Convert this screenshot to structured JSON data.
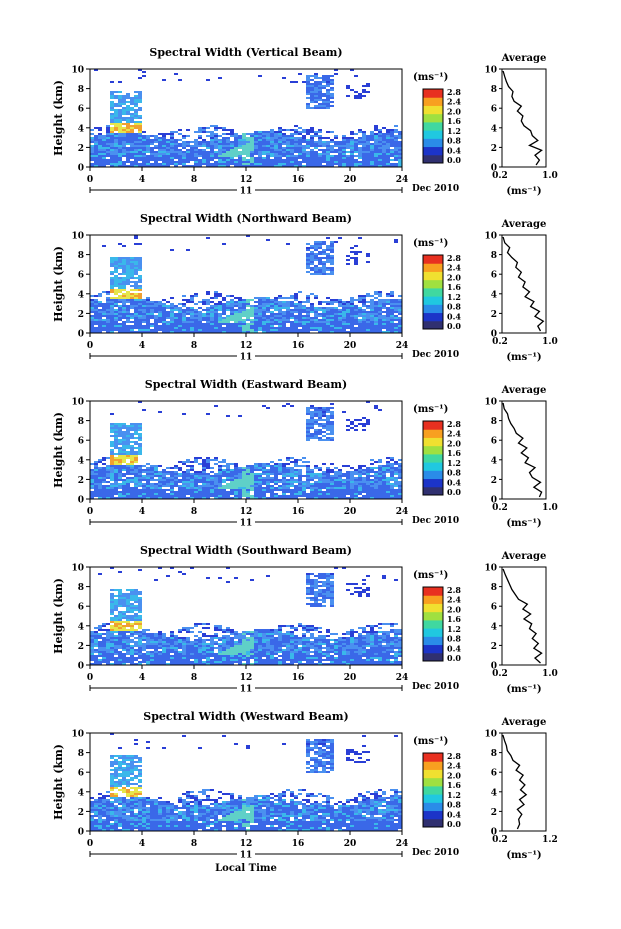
{
  "figure": {
    "date_label": "Dec 2010",
    "day_label": "11",
    "x_label": "Local Time",
    "y_label": "Height (km)",
    "unit_label": "(ms⁻¹)",
    "avg_title": "Average",
    "avg_xlabel": "(ms⁻¹)",
    "colorbar_ticks": [
      "0.0",
      "0.4",
      "0.8",
      "1.2",
      "1.6",
      "2.0",
      "2.4",
      "2.8"
    ],
    "colorbar_colors": [
      "#303070",
      "#1c34c8",
      "#2a8ce8",
      "#20c8e0",
      "#40d8a0",
      "#a0e040",
      "#f0e030",
      "#f8a020",
      "#e83020"
    ],
    "heatmap_colors": [
      "#2a3fd6",
      "#3a68e8",
      "#4a90f0",
      "#3ab8ea",
      "#5fd0c8",
      "#e6e64a",
      "#f0a030"
    ]
  },
  "chart_data": [
    {
      "type": "heatmap",
      "title": "Spectral Width (Vertical Beam)",
      "xlabel": "",
      "ylabel": "Height (km)",
      "xlim": [
        0,
        24
      ],
      "ylim": [
        0,
        10
      ],
      "x_ticks": [
        0,
        4,
        8,
        12,
        16,
        20,
        24
      ],
      "y_ticks": [
        0,
        2,
        4,
        6,
        8,
        10
      ],
      "colorbar_range": [
        0.0,
        2.8
      ],
      "average_profile": {
        "xlim": [
          0.2,
          1.0
        ],
        "x_tick_labels": [
          "0.2",
          "1.0"
        ],
        "x": [
          0.82,
          0.88,
          0.8,
          0.92,
          0.7,
          0.85,
          0.75,
          0.72,
          0.6,
          0.55,
          0.58,
          0.48,
          0.55,
          0.42,
          0.38,
          0.4,
          0.32,
          0.28,
          0.25,
          0.22
        ],
        "y": [
          0.2,
          0.7,
          1.2,
          1.7,
          2.2,
          2.7,
          3.2,
          3.7,
          4.2,
          4.7,
          5.2,
          5.7,
          6.2,
          6.7,
          7.2,
          7.7,
          8.2,
          8.7,
          9.2,
          9.8
        ]
      }
    },
    {
      "type": "heatmap",
      "title": "Spectral Width (Northward Beam)",
      "xlabel": "",
      "ylabel": "Height (km)",
      "xlim": [
        0,
        24
      ],
      "ylim": [
        0,
        10
      ],
      "x_ticks": [
        0,
        4,
        8,
        12,
        16,
        20,
        24
      ],
      "y_ticks": [
        0,
        2,
        4,
        6,
        8,
        10
      ],
      "colorbar_range": [
        0.0,
        2.8
      ],
      "average_profile": {
        "xlim": [
          0.2,
          1.0
        ],
        "x_tick_labels": [
          "0.2",
          "1.0"
        ],
        "x": [
          0.9,
          0.85,
          0.95,
          0.8,
          0.88,
          0.72,
          0.78,
          0.62,
          0.7,
          0.58,
          0.62,
          0.5,
          0.55,
          0.45,
          0.48,
          0.38,
          0.3,
          0.34,
          0.25,
          0.22
        ],
        "y": [
          0.2,
          0.7,
          1.2,
          1.7,
          2.2,
          2.7,
          3.2,
          3.7,
          4.2,
          4.7,
          5.2,
          5.7,
          6.2,
          6.7,
          7.2,
          7.7,
          8.2,
          8.7,
          9.2,
          9.8
        ]
      }
    },
    {
      "type": "heatmap",
      "title": "Spectral Width (Eastward Beam)",
      "xlabel": "",
      "ylabel": "Height (km)",
      "xlim": [
        0,
        24
      ],
      "ylim": [
        0,
        10
      ],
      "x_ticks": [
        0,
        4,
        8,
        12,
        16,
        20,
        24
      ],
      "y_ticks": [
        0,
        2,
        4,
        6,
        8,
        10
      ],
      "colorbar_range": [
        0.0,
        2.8
      ],
      "average_profile": {
        "xlim": [
          0.2,
          1.0
        ],
        "x_tick_labels": [
          "0.2",
          "1.0"
        ],
        "x": [
          0.88,
          0.92,
          0.78,
          0.9,
          0.75,
          0.7,
          0.8,
          0.62,
          0.68,
          0.55,
          0.65,
          0.5,
          0.58,
          0.46,
          0.42,
          0.36,
          0.32,
          0.3,
          0.24,
          0.22
        ],
        "y": [
          0.2,
          0.7,
          1.2,
          1.7,
          2.2,
          2.7,
          3.2,
          3.7,
          4.2,
          4.7,
          5.2,
          5.7,
          6.2,
          6.7,
          7.2,
          7.7,
          8.2,
          8.7,
          9.2,
          9.8
        ]
      }
    },
    {
      "type": "heatmap",
      "title": "Spectral Width (Southward Beam)",
      "xlabel": "",
      "ylabel": "Height (km)",
      "xlim": [
        0,
        24
      ],
      "ylim": [
        0,
        10
      ],
      "x_ticks": [
        0,
        4,
        8,
        12,
        16,
        20,
        24
      ],
      "y_ticks": [
        0,
        2,
        4,
        6,
        8,
        10
      ],
      "colorbar_range": [
        0.0,
        2.8
      ],
      "average_profile": {
        "xlim": [
          0.2,
          1.0
        ],
        "x_tick_labels": [
          "0.2",
          "1.0"
        ],
        "x": [
          0.9,
          0.8,
          0.92,
          0.78,
          0.86,
          0.75,
          0.82,
          0.7,
          0.74,
          0.6,
          0.72,
          0.58,
          0.66,
          0.5,
          0.44,
          0.38,
          0.34,
          0.3,
          0.26,
          0.22
        ],
        "y": [
          0.2,
          0.7,
          1.2,
          1.7,
          2.2,
          2.7,
          3.2,
          3.7,
          4.2,
          4.7,
          5.2,
          5.7,
          6.2,
          6.7,
          7.2,
          7.7,
          8.2,
          8.7,
          9.2,
          9.8
        ]
      }
    },
    {
      "type": "heatmap",
      "title": "Spectral Width (Westward Beam)",
      "xlabel": "Local Time",
      "ylabel": "Height (km)",
      "xlim": [
        0,
        24
      ],
      "ylim": [
        0,
        10
      ],
      "x_ticks": [
        0,
        4,
        8,
        12,
        16,
        20,
        24
      ],
      "y_ticks": [
        0,
        2,
        4,
        6,
        8,
        10
      ],
      "colorbar_range": [
        0.0,
        2.8
      ],
      "average_profile": {
        "xlim": [
          0.2,
          1.2
        ],
        "x_tick_labels": [
          "0.2",
          "1.2"
        ],
        "x": [
          0.55,
          0.6,
          0.58,
          0.65,
          0.55,
          0.7,
          0.6,
          0.75,
          0.62,
          0.72,
          0.6,
          0.68,
          0.52,
          0.6,
          0.45,
          0.4,
          0.32,
          0.3,
          0.26,
          0.22
        ],
        "y": [
          0.2,
          0.7,
          1.2,
          1.7,
          2.2,
          2.7,
          3.2,
          3.7,
          4.2,
          4.7,
          5.2,
          5.7,
          6.2,
          6.7,
          7.2,
          7.7,
          8.2,
          8.7,
          9.2,
          9.8
        ]
      }
    }
  ]
}
